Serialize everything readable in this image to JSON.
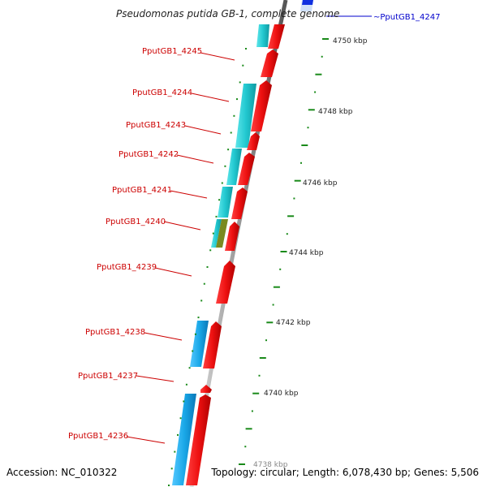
{
  "title": "Pseudomonas putida GB-1, complete genome",
  "accession": "Accession: NC_010322",
  "topology": "Topology: circular; Length: 6,078,430 bp; Genes: 5,506",
  "colors": {
    "forward_gene": "#ee1111",
    "reverse_cds": "#22c8d0",
    "reverse_cds_alt": "#1aa8e8",
    "mixed_segment": "#7a8a20",
    "backbone": "#999999",
    "ticks": "#1a8a1a",
    "label_red": "#cc0000",
    "label_blue": "#0000cc"
  },
  "gene_labels": [
    {
      "text": "~PputGB1_4247",
      "color": "blue"
    },
    {
      "text": "PputGB1_4245",
      "color": "red"
    },
    {
      "text": "PputGB1_4244",
      "color": "red"
    },
    {
      "text": "PputGB1_4243",
      "color": "red"
    },
    {
      "text": "PputGB1_4242",
      "color": "red"
    },
    {
      "text": "PputGB1_4241",
      "color": "red"
    },
    {
      "text": "PputGB1_4240",
      "color": "red"
    },
    {
      "text": "PputGB1_4239",
      "color": "red"
    },
    {
      "text": "PputGB1_4238",
      "color": "red"
    },
    {
      "text": "PputGB1_4237",
      "color": "red"
    },
    {
      "text": "PputGB1_4236",
      "color": "red"
    }
  ],
  "kbp_labels": [
    "4750 kbp",
    "4748 kbp",
    "4746 kbp",
    "4744 kbp",
    "4742 kbp",
    "4740 kbp",
    "4738 kbp"
  ]
}
